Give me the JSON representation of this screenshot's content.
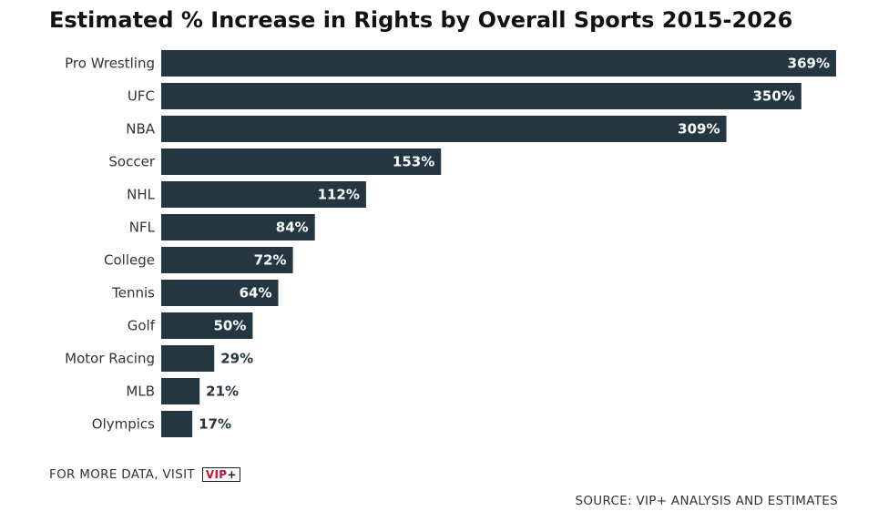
{
  "chart_data": {
    "type": "bar",
    "orientation": "horizontal",
    "title": "Estimated % Increase in Rights by Overall Sports 2015-2026",
    "categories": [
      "Pro Wrestling",
      "UFC",
      "NBA",
      "Soccer",
      "NHL",
      "NFL",
      "College",
      "Tennis",
      "Golf",
      "Motor Racing",
      "MLB",
      "Olympics"
    ],
    "values": [
      369,
      350,
      309,
      153,
      112,
      84,
      72,
      64,
      50,
      29,
      21,
      17
    ],
    "value_labels": [
      "369%",
      "350%",
      "309%",
      "153%",
      "112%",
      "84%",
      "72%",
      "64%",
      "50%",
      "29%",
      "21%",
      "17%"
    ],
    "xlim": [
      0,
      369
    ],
    "grid": false,
    "legend": "none",
    "colors": {
      "bar": "#243741",
      "label_inside": "#ffffff",
      "label_outside": "#243741"
    }
  },
  "footer": {
    "more_data_text": "FOR MORE DATA, VISIT",
    "badge_vip": "VIP",
    "badge_plus": "+",
    "source_text": "SOURCE: VIP+ ANALYSIS AND ESTIMATES"
  }
}
